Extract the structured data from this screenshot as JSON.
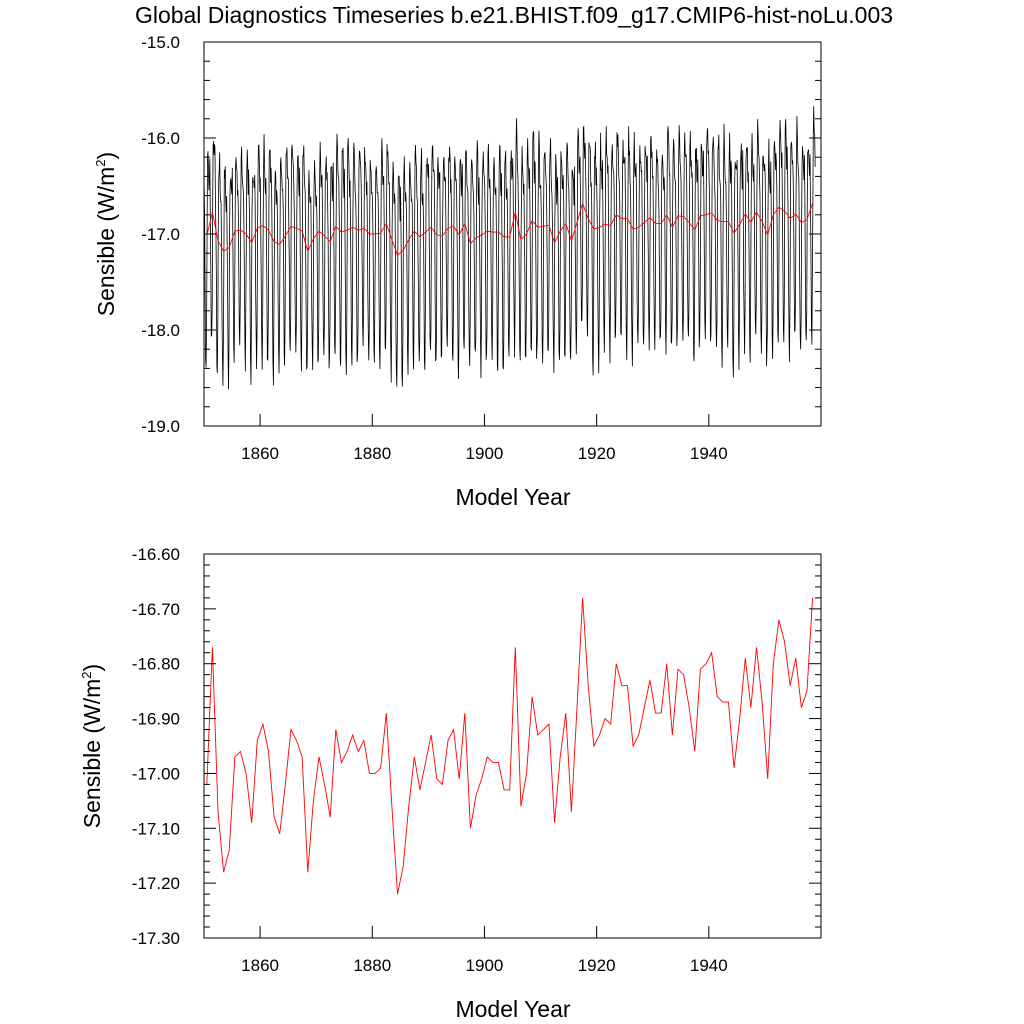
{
  "figure_title": "Global Diagnostics Timeseries b.e21.BHIST.f09_g17.CMIP6-hist-noLu.003",
  "colors": {
    "monthly": "#000000",
    "annual": "#ff0000"
  },
  "chart_data": [
    {
      "type": "line",
      "xlabel": "Model Year",
      "ylabel": "Sensible (W/m2)",
      "ylabel_main": "Sensible (W/m",
      "ylabel_sup": "2",
      "ylabel_close": ")",
      "xlim": [
        1850,
        1960
      ],
      "ylim": [
        -19.0,
        -15.0
      ],
      "xticks": [
        1860,
        1880,
        1900,
        1920,
        1940
      ],
      "xtick_labels": [
        "1860",
        "1880",
        "1900",
        "1920",
        "1940"
      ],
      "yticks": [
        -19.0,
        -18.0,
        -17.0,
        -16.0,
        -15.0
      ],
      "ytick_labels": [
        "-19.0",
        "-18.0",
        "-17.0",
        "-16.0",
        "-15.0"
      ],
      "grid": false,
      "series": [
        {
          "style": "monthly",
          "color": "#000000",
          "x_start": 1850,
          "seasonal_cycle": [
            -16.5,
            -16.9,
            -17.55,
            -18.2,
            -18.35,
            -17.9,
            -16.95,
            -16.3,
            -16.15,
            -16.25,
            -16.45,
            -16.5
          ],
          "annual_anomaly_from": "annual mean series"
        },
        {
          "style": "annual",
          "color": "#ff0000",
          "x_start": 1850,
          "values_ref": "annual_mean"
        }
      ]
    },
    {
      "type": "line",
      "xlabel": "Model Year",
      "ylabel": "Sensible (W/m2)",
      "ylabel_main": "Sensible (W/m",
      "ylabel_sup": "2",
      "ylabel_close": ")",
      "xlim": [
        1850,
        1960
      ],
      "ylim": [
        -17.3,
        -16.6
      ],
      "xticks": [
        1860,
        1880,
        1900,
        1920,
        1940
      ],
      "xtick_labels": [
        "1860",
        "1880",
        "1900",
        "1920",
        "1940"
      ],
      "yticks": [
        -17.3,
        -17.2,
        -17.1,
        -17.0,
        -16.9,
        -16.8,
        -16.7,
        -16.6
      ],
      "ytick_labels": [
        "-17.30",
        "-17.20",
        "-17.10",
        "-17.00",
        "-16.90",
        "-16.80",
        "-16.70",
        "-16.60"
      ],
      "grid": false,
      "series": [
        {
          "style": "annual",
          "color": "#ff0000",
          "x_start": 1850,
          "values_ref": "annual_mean"
        }
      ]
    }
  ],
  "annual_mean": [
    -17.02,
    -16.77,
    -17.07,
    -17.18,
    -17.14,
    -16.97,
    -16.96,
    -17.0,
    -17.09,
    -16.94,
    -16.91,
    -16.96,
    -17.08,
    -17.11,
    -17.02,
    -16.92,
    -16.94,
    -16.97,
    -17.18,
    -17.05,
    -16.97,
    -17.02,
    -17.08,
    -16.92,
    -16.98,
    -16.96,
    -16.93,
    -16.96,
    -16.94,
    -17.0,
    -17.0,
    -16.99,
    -16.89,
    -17.06,
    -17.22,
    -17.17,
    -17.06,
    -16.97,
    -17.03,
    -16.98,
    -16.93,
    -17.01,
    -17.02,
    -16.94,
    -16.92,
    -17.01,
    -16.89,
    -17.1,
    -17.04,
    -17.01,
    -16.97,
    -16.98,
    -16.98,
    -17.03,
    -17.03,
    -16.77,
    -17.06,
    -17.0,
    -16.86,
    -16.93,
    -16.92,
    -16.91,
    -17.09,
    -16.97,
    -16.89,
    -17.07,
    -16.88,
    -16.68,
    -16.84,
    -16.95,
    -16.93,
    -16.9,
    -16.91,
    -16.8,
    -16.84,
    -16.84,
    -16.95,
    -16.93,
    -16.88,
    -16.83,
    -16.89,
    -16.89,
    -16.8,
    -16.93,
    -16.81,
    -16.82,
    -16.88,
    -16.96,
    -16.81,
    -16.8,
    -16.78,
    -16.86,
    -16.87,
    -16.87,
    -16.99,
    -16.9,
    -16.79,
    -16.88,
    -16.77,
    -16.87,
    -17.01,
    -16.8,
    -16.72,
    -16.76,
    -16.84,
    -16.79,
    -16.88,
    -16.85,
    -16.68
  ]
}
